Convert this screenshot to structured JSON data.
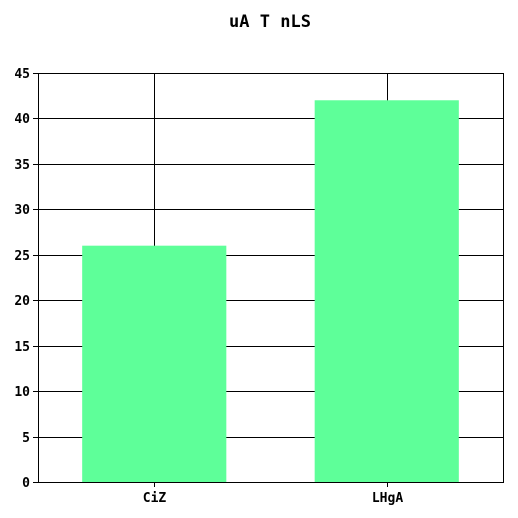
{
  "chart_data": {
    "type": "bar",
    "title": "uA  T  nLS",
    "xlabel": "",
    "ylabel": "",
    "categories": [
      "CiZ",
      "LHgA"
    ],
    "values": [
      26,
      42
    ],
    "ylim": [
      0,
      45
    ],
    "yticks": [
      0,
      5,
      10,
      15,
      20,
      25,
      30,
      35,
      40,
      45
    ],
    "grid": true,
    "legend": "none",
    "colors": {
      "bar": "#5eff99",
      "grid": "#000000",
      "axis": "#000000",
      "text": "#000000",
      "background": "#ffffff"
    }
  }
}
